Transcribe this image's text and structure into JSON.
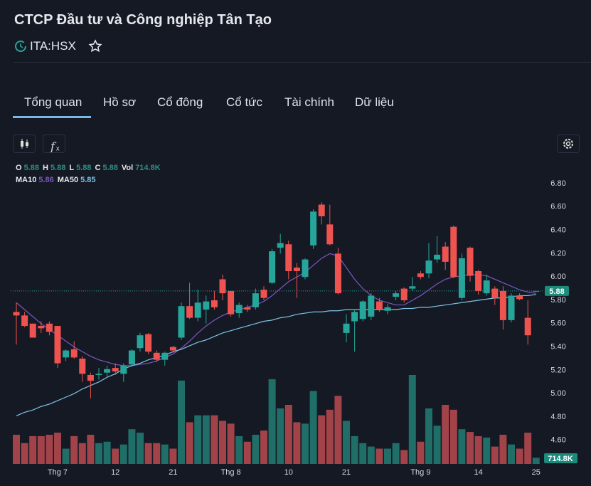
{
  "header": {
    "title": "CTCP Đầu tư và Công nghiệp Tân Tạo",
    "ticker": "ITA:HSX"
  },
  "tabs": [
    "Tổng quan",
    "Hồ sơ",
    "Cổ đông",
    "Cổ tức",
    "Tài chính",
    "Dữ liệu"
  ],
  "chart_data": {
    "type": "candlestick",
    "legend": [
      {
        "label": "O",
        "text": "5.88"
      },
      {
        "label": "H",
        "text": "5.88"
      },
      {
        "label": "L",
        "text": "5.88"
      },
      {
        "label": "C",
        "text": "5.88"
      },
      {
        "label": "Vol",
        "text": "714.8K"
      }
    ],
    "categories": [
      null,
      null,
      null,
      null,
      null,
      "Thg 7",
      null,
      null,
      null,
      null,
      null,
      null,
      "12",
      null,
      null,
      null,
      null,
      null,
      null,
      "21",
      null,
      null,
      null,
      null,
      null,
      null,
      "Thg 8",
      null,
      null,
      null,
      null,
      null,
      null,
      "10",
      null,
      null,
      null,
      null,
      null,
      null,
      "21",
      null,
      null,
      null,
      null,
      null,
      null,
      null,
      null,
      "Thg 9",
      null,
      null,
      null,
      null,
      null,
      null,
      "14",
      null,
      null,
      null,
      null,
      null,
      null,
      "25"
    ],
    "open": [
      5.7,
      5.67,
      5.6,
      5.58,
      5.6,
      5.58,
      5.31,
      5.38,
      5.3,
      5.16,
      5.16,
      5.18,
      5.22,
      5.17,
      5.25,
      5.39,
      5.51,
      5.35,
      5.29,
      5.4,
      5.48,
      5.75,
      5.65,
      5.72,
      5.8,
      5.98,
      5.88,
      5.69,
      5.74,
      5.74,
      5.89,
      5.95,
      6.25,
      6.28,
      6.08,
      6.0,
      6.27,
      6.62,
      6.45,
      6.2,
      5.52,
      5.62,
      5.64,
      5.66,
      5.79,
      5.71,
      5.83,
      5.9,
      5.9,
      6.03,
      6.03,
      6.15,
      6.26,
      6.43,
      5.82,
      6.25,
      6.05,
      5.86,
      5.9,
      5.88,
      5.63,
      5.84,
      5.65,
      5.88
    ],
    "high": [
      5.78,
      5.7,
      5.6,
      5.62,
      5.62,
      5.58,
      5.38,
      5.45,
      5.32,
      5.18,
      5.22,
      5.24,
      5.26,
      5.26,
      5.38,
      5.52,
      5.52,
      5.37,
      5.36,
      5.41,
      5.78,
      5.95,
      5.89,
      5.84,
      5.88,
      6.02,
      5.88,
      5.78,
      5.76,
      5.9,
      5.92,
      6.24,
      6.37,
      6.31,
      6.12,
      6.16,
      6.58,
      6.64,
      6.62,
      6.25,
      5.68,
      5.72,
      5.8,
      5.86,
      5.82,
      5.77,
      5.88,
      5.91,
      6.0,
      6.05,
      6.29,
      6.35,
      6.3,
      6.44,
      6.2,
      6.26,
      6.06,
      6.02,
      5.92,
      5.92,
      5.86,
      5.86,
      5.8,
      5.88
    ],
    "low": [
      5.42,
      5.57,
      5.48,
      5.52,
      5.5,
      5.22,
      5.28,
      5.3,
      5.1,
      4.96,
      5.12,
      5.14,
      5.16,
      5.1,
      5.23,
      5.36,
      5.34,
      5.27,
      5.24,
      5.35,
      5.46,
      5.64,
      5.62,
      5.6,
      5.72,
      5.8,
      5.66,
      5.65,
      5.7,
      5.72,
      5.8,
      5.94,
      6.2,
      5.98,
      5.82,
      5.98,
      6.24,
      6.45,
      6.27,
      5.85,
      5.44,
      5.36,
      5.62,
      5.63,
      5.7,
      5.68,
      5.8,
      5.78,
      5.88,
      5.98,
      5.99,
      6.12,
      6.06,
      5.99,
      5.8,
      5.96,
      5.85,
      5.84,
      5.76,
      5.55,
      5.61,
      5.8,
      5.42,
      5.88
    ],
    "close": [
      5.67,
      5.58,
      5.48,
      5.56,
      5.53,
      5.26,
      5.37,
      5.31,
      5.17,
      5.11,
      5.17,
      5.21,
      5.19,
      5.24,
      5.37,
      5.5,
      5.36,
      5.29,
      5.35,
      5.37,
      5.75,
      5.65,
      5.78,
      5.79,
      5.74,
      5.86,
      5.68,
      5.76,
      5.72,
      5.86,
      5.82,
      6.22,
      6.29,
      6.05,
      6.05,
      6.15,
      6.56,
      6.52,
      6.28,
      5.86,
      5.6,
      5.7,
      5.79,
      5.84,
      5.72,
      5.74,
      5.86,
      5.8,
      5.92,
      6.0,
      6.14,
      6.19,
      6.13,
      6.0,
      6.16,
      6.01,
      5.88,
      5.97,
      5.82,
      5.63,
      5.84,
      5.81,
      5.5,
      5.88
    ],
    "volume": [
      3360000,
      2400000,
      3200000,
      3200000,
      3360000,
      3600000,
      1760000,
      3200000,
      2400000,
      3360000,
      2400000,
      2560000,
      1760000,
      2240000,
      4000000,
      3600000,
      2400000,
      2400000,
      2240000,
      1760000,
      9600000,
      4800000,
      5600000,
      5600000,
      5600000,
      4960000,
      4640000,
      3200000,
      2560000,
      3360000,
      3840000,
      9760000,
      6400000,
      6800000,
      4800000,
      4640000,
      8400000,
      5600000,
      6240000,
      7840000,
      4960000,
      3200000,
      2400000,
      2000000,
      1760000,
      1760000,
      2400000,
      1600000,
      10240000,
      2560000,
      6400000,
      4400000,
      6800000,
      6240000,
      4000000,
      3680000,
      3200000,
      3040000,
      2000000,
      3360000,
      2240000,
      1760000,
      3600000,
      714800
    ],
    "up_color": "#26a69a",
    "down_color": "#ef5350",
    "up_volume_color": "#1f6e68",
    "down_volume_color": "#a2434a",
    "series": [
      {
        "name": "MA10",
        "color": "#7e57c2",
        "legend_text": "5.86",
        "values": [
          5.78,
          5.72,
          5.66,
          5.6,
          5.55,
          5.5,
          5.45,
          5.4,
          5.36,
          5.32,
          5.29,
          5.27,
          5.25,
          5.24,
          5.24,
          5.25,
          5.26,
          5.28,
          5.31,
          5.34,
          5.39,
          5.45,
          5.52,
          5.58,
          5.63,
          5.67,
          5.7,
          5.72,
          5.74,
          5.76,
          5.79,
          5.84,
          5.9,
          5.96,
          6.0,
          6.04,
          6.1,
          6.16,
          6.2,
          6.18,
          6.08,
          5.98,
          5.9,
          5.84,
          5.8,
          5.78,
          5.76,
          5.76,
          5.8,
          5.84,
          5.89,
          5.94,
          5.98,
          6.0,
          6.01,
          6.02,
          6.02,
          6.01,
          5.98,
          5.95,
          5.92,
          5.89,
          5.87,
          5.86
        ]
      },
      {
        "name": "MA50",
        "color": "#7ec3e6",
        "legend_text": "5.85",
        "values": [
          4.81,
          4.84,
          4.86,
          4.89,
          4.91,
          4.94,
          4.97,
          5.0,
          5.04,
          5.07,
          5.1,
          5.14,
          5.17,
          5.21,
          5.24,
          5.26,
          5.29,
          5.31,
          5.33,
          5.36,
          5.38,
          5.41,
          5.44,
          5.46,
          5.49,
          5.52,
          5.54,
          5.56,
          5.58,
          5.6,
          5.62,
          5.63,
          5.65,
          5.66,
          5.68,
          5.69,
          5.7,
          5.7,
          5.71,
          5.71,
          5.72,
          5.72,
          5.72,
          5.72,
          5.72,
          5.72,
          5.72,
          5.73,
          5.73,
          5.74,
          5.74,
          5.75,
          5.76,
          5.77,
          5.78,
          5.79,
          5.8,
          5.81,
          5.82,
          5.82,
          5.83,
          5.84,
          5.84,
          5.85
        ]
      }
    ],
    "last_price": {
      "value": 5.88,
      "label": "5.88"
    },
    "last_volume_label": "714.8K",
    "ylim": [
      4.5,
      6.9
    ],
    "yticks": [
      {
        "value": 4.6,
        "label": "4.60"
      },
      {
        "value": 4.8,
        "label": "4.80"
      },
      {
        "value": 5.0,
        "label": "5.00"
      },
      {
        "value": 5.2,
        "label": "5.20"
      },
      {
        "value": 5.4,
        "label": "5.40"
      },
      {
        "value": 5.6,
        "label": "5.60"
      },
      {
        "value": 5.8,
        "label": "5.80"
      },
      {
        "value": 6.0,
        "label": "6.00"
      },
      {
        "value": 6.2,
        "label": "6.20"
      },
      {
        "value": 6.4,
        "label": "6.40"
      },
      {
        "value": 6.6,
        "label": "6.60"
      },
      {
        "value": 6.8,
        "label": "6.80"
      }
    ],
    "grid": false
  }
}
